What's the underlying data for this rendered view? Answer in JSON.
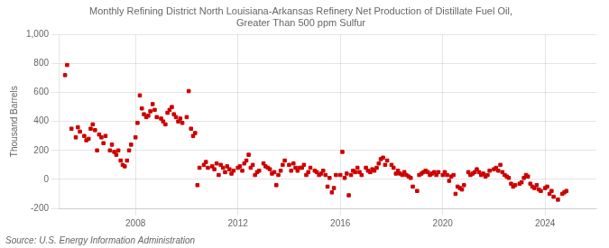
{
  "chart_data": {
    "type": "scatter",
    "title": "Monthly Refining District North Louisiana-Arkansas Refinery Net Production of Distillate Fuel Oil,\nGreater Than 500 ppm Sulfur",
    "ylabel": "Thousand Barrels",
    "source": "Source: U.S. Energy Information Administration",
    "color": "#cc0000",
    "marker": "square",
    "grid": true,
    "xlim": [
      2005.0,
      2026.0
    ],
    "xticks": [
      2008,
      2012,
      2016,
      2020,
      2024
    ],
    "ylim": [
      -200,
      1000
    ],
    "yticks": [
      -200,
      0,
      200,
      400,
      600,
      800,
      {
        "value": 1000,
        "label": "1,000"
      }
    ],
    "x": [
      2005.25,
      2005.33,
      2005.5,
      2005.67,
      2005.75,
      2005.83,
      2006.0,
      2006.08,
      2006.17,
      2006.25,
      2006.33,
      2006.42,
      2006.5,
      2006.58,
      2006.67,
      2006.75,
      2006.83,
      2007.0,
      2007.08,
      2007.17,
      2007.25,
      2007.33,
      2007.42,
      2007.5,
      2007.58,
      2007.67,
      2007.75,
      2007.83,
      2008.0,
      2008.08,
      2008.17,
      2008.25,
      2008.33,
      2008.42,
      2008.5,
      2008.58,
      2008.67,
      2008.75,
      2008.83,
      2009.0,
      2009.08,
      2009.17,
      2009.25,
      2009.33,
      2009.42,
      2009.5,
      2009.58,
      2009.67,
      2009.75,
      2009.83,
      2010.0,
      2010.08,
      2010.17,
      2010.25,
      2010.33,
      2010.42,
      2010.5,
      2010.67,
      2010.75,
      2010.83,
      2011.0,
      2011.08,
      2011.17,
      2011.25,
      2011.33,
      2011.42,
      2011.5,
      2011.58,
      2011.67,
      2011.75,
      2011.83,
      2012.0,
      2012.08,
      2012.17,
      2012.25,
      2012.33,
      2012.42,
      2012.5,
      2012.58,
      2012.67,
      2012.75,
      2012.83,
      2013.0,
      2013.08,
      2013.17,
      2013.25,
      2013.33,
      2013.42,
      2013.5,
      2013.58,
      2013.67,
      2013.75,
      2013.83,
      2014.0,
      2014.08,
      2014.17,
      2014.25,
      2014.33,
      2014.42,
      2014.5,
      2014.58,
      2014.67,
      2014.75,
      2014.83,
      2015.0,
      2015.08,
      2015.17,
      2015.25,
      2015.33,
      2015.42,
      2015.5,
      2015.58,
      2015.67,
      2015.75,
      2015.83,
      2016.0,
      2016.08,
      2016.17,
      2016.25,
      2016.33,
      2016.42,
      2016.5,
      2016.58,
      2016.67,
      2016.75,
      2016.83,
      2017.0,
      2017.08,
      2017.17,
      2017.25,
      2017.33,
      2017.42,
      2017.5,
      2017.58,
      2017.67,
      2017.75,
      2017.83,
      2018.0,
      2018.08,
      2018.17,
      2018.25,
      2018.33,
      2018.42,
      2018.5,
      2018.58,
      2018.67,
      2018.75,
      2018.83,
      2019.0,
      2019.08,
      2019.17,
      2019.25,
      2019.33,
      2019.42,
      2019.5,
      2019.58,
      2019.67,
      2019.75,
      2019.83,
      2020.0,
      2020.08,
      2020.17,
      2020.25,
      2020.33,
      2020.42,
      2020.5,
      2020.58,
      2020.67,
      2020.75,
      2020.83,
      2021.0,
      2021.08,
      2021.17,
      2021.25,
      2021.33,
      2021.42,
      2021.5,
      2021.58,
      2021.67,
      2021.75,
      2021.83,
      2022.0,
      2022.08,
      2022.17,
      2022.25,
      2022.33,
      2022.42,
      2022.5,
      2022.58,
      2022.67,
      2022.75,
      2022.83,
      2023.0,
      2023.08,
      2023.17,
      2023.25,
      2023.33,
      2023.42,
      2023.5,
      2023.58,
      2023.67,
      2023.75,
      2023.83,
      2024.0,
      2024.08,
      2024.17,
      2024.25,
      2024.33,
      2024.5,
      2024.67,
      2024.75,
      2024.83
    ],
    "values": [
      720,
      790,
      350,
      290,
      360,
      330,
      300,
      270,
      280,
      350,
      380,
      340,
      200,
      310,
      290,
      250,
      300,
      200,
      240,
      190,
      170,
      200,
      130,
      100,
      90,
      130,
      200,
      240,
      290,
      390,
      580,
      490,
      450,
      430,
      440,
      470,
      520,
      480,
      430,
      420,
      400,
      380,
      460,
      480,
      500,
      450,
      430,
      400,
      420,
      390,
      430,
      610,
      350,
      300,
      320,
      -40,
      80,
      100,
      120,
      80,
      90,
      70,
      110,
      30,
      100,
      80,
      50,
      90,
      70,
      40,
      60,
      80,
      90,
      60,
      110,
      130,
      170,
      80,
      100,
      30,
      50,
      60,
      110,
      90,
      80,
      70,
      40,
      50,
      -40,
      30,
      60,
      100,
      130,
      100,
      60,
      110,
      80,
      60,
      80,
      80,
      100,
      30,
      50,
      80,
      60,
      50,
      30,
      40,
      60,
      30,
      -50,
      10,
      -90,
      -60,
      30,
      30,
      190,
      10,
      40,
      -110,
      30,
      60,
      50,
      80,
      50,
      30,
      80,
      60,
      50,
      70,
      60,
      80,
      110,
      140,
      150,
      100,
      130,
      100,
      80,
      40,
      60,
      40,
      30,
      50,
      30,
      20,
      10,
      -50,
      -80,
      30,
      40,
      50,
      60,
      50,
      30,
      40,
      50,
      30,
      50,
      30,
      50,
      30,
      -10,
      20,
      30,
      -100,
      -50,
      -60,
      -70,
      -40,
      50,
      30,
      40,
      50,
      70,
      50,
      30,
      40,
      20,
      30,
      60,
      70,
      80,
      60,
      100,
      50,
      30,
      20,
      10,
      -30,
      -50,
      -40,
      -30,
      -20,
      10,
      30,
      20,
      -30,
      -50,
      -60,
      -40,
      -70,
      -80,
      -60,
      -50,
      -100,
      -80,
      -120,
      -140,
      -100,
      -90,
      -80
    ]
  }
}
